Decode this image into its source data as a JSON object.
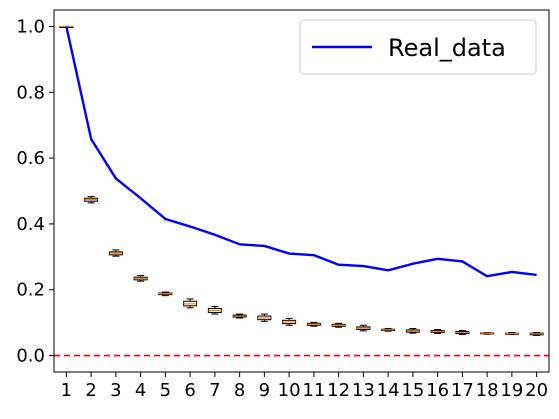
{
  "chart_data": {
    "type": "box-with-line",
    "title": "",
    "xlabel": "",
    "ylabel": "",
    "xlim": [
      0.5,
      20.5
    ],
    "ylim": [
      -0.05,
      1.05
    ],
    "x_ticks": [
      "1",
      "2",
      "3",
      "4",
      "5",
      "6",
      "7",
      "8",
      "9",
      "10",
      "11",
      "12",
      "13",
      "14",
      "15",
      "16",
      "17",
      "18",
      "19",
      "20"
    ],
    "y_ticks": [
      {
        "value": 0.0,
        "label": "0.0"
      },
      {
        "value": 0.2,
        "label": "0.2"
      },
      {
        "value": 0.4,
        "label": "0.4"
      },
      {
        "value": 0.6,
        "label": "0.6"
      },
      {
        "value": 0.8,
        "label": "0.8"
      },
      {
        "value": 1.0,
        "label": "1.0"
      }
    ],
    "grid": false,
    "legend": {
      "placement": "top-right",
      "entries": [
        {
          "label": "Real_data",
          "color": "#0000ff"
        }
      ]
    },
    "line_series": {
      "name": "Real_data",
      "color": "#0000ff",
      "x": [
        1,
        2,
        3,
        4,
        5,
        6,
        7,
        8,
        9,
        10,
        11,
        12,
        13,
        14,
        15,
        16,
        17,
        18,
        19,
        20
      ],
      "y": [
        1.0,
        0.658,
        0.538,
        0.478,
        0.415,
        0.392,
        0.367,
        0.338,
        0.333,
        0.31,
        0.305,
        0.276,
        0.272,
        0.259,
        0.279,
        0.294,
        0.286,
        0.241,
        0.254,
        0.245
      ]
    },
    "box_series": {
      "box_color": "#000000",
      "median_color": "#ff7f0e",
      "boxes": [
        {
          "x": 1,
          "min": 0.998,
          "q1": 0.999,
          "median": 1.0,
          "q3": 1.0,
          "max": 1.0
        },
        {
          "x": 2,
          "min": 0.464,
          "q1": 0.469,
          "median": 0.474,
          "q3": 0.478,
          "max": 0.483
        },
        {
          "x": 3,
          "min": 0.302,
          "q1": 0.306,
          "median": 0.311,
          "q3": 0.315,
          "max": 0.321
        },
        {
          "x": 4,
          "min": 0.226,
          "q1": 0.23,
          "median": 0.234,
          "q3": 0.238,
          "max": 0.243
        },
        {
          "x": 5,
          "min": 0.182,
          "q1": 0.185,
          "median": 0.188,
          "q3": 0.19,
          "max": 0.193
        },
        {
          "x": 6,
          "min": 0.145,
          "q1": 0.151,
          "median": 0.157,
          "q3": 0.165,
          "max": 0.172
        },
        {
          "x": 7,
          "min": 0.126,
          "q1": 0.131,
          "median": 0.137,
          "q3": 0.143,
          "max": 0.149
        },
        {
          "x": 8,
          "min": 0.114,
          "q1": 0.117,
          "median": 0.12,
          "q3": 0.123,
          "max": 0.126
        },
        {
          "x": 9,
          "min": 0.104,
          "q1": 0.109,
          "median": 0.114,
          "q3": 0.12,
          "max": 0.126
        },
        {
          "x": 10,
          "min": 0.092,
          "q1": 0.097,
          "median": 0.102,
          "q3": 0.107,
          "max": 0.113
        },
        {
          "x": 11,
          "min": 0.089,
          "q1": 0.092,
          "median": 0.095,
          "q3": 0.098,
          "max": 0.101
        },
        {
          "x": 12,
          "min": 0.086,
          "q1": 0.089,
          "median": 0.092,
          "q3": 0.095,
          "max": 0.098
        },
        {
          "x": 13,
          "min": 0.075,
          "q1": 0.079,
          "median": 0.083,
          "q3": 0.087,
          "max": 0.092
        },
        {
          "x": 14,
          "min": 0.074,
          "q1": 0.076,
          "median": 0.078,
          "q3": 0.08,
          "max": 0.082
        },
        {
          "x": 15,
          "min": 0.068,
          "q1": 0.071,
          "median": 0.075,
          "q3": 0.078,
          "max": 0.082
        },
        {
          "x": 16,
          "min": 0.067,
          "q1": 0.07,
          "median": 0.073,
          "q3": 0.076,
          "max": 0.079
        },
        {
          "x": 17,
          "min": 0.064,
          "q1": 0.067,
          "median": 0.07,
          "q3": 0.073,
          "max": 0.076
        },
        {
          "x": 18,
          "min": 0.065,
          "q1": 0.066,
          "median": 0.068,
          "q3": 0.069,
          "max": 0.07
        },
        {
          "x": 19,
          "min": 0.064,
          "q1": 0.066,
          "median": 0.067,
          "q3": 0.068,
          "max": 0.07
        },
        {
          "x": 20,
          "min": 0.061,
          "q1": 0.063,
          "median": 0.066,
          "q3": 0.068,
          "max": 0.07
        }
      ]
    },
    "reference_line": {
      "y": 0.0,
      "color": "#ff0000",
      "style": "dashed"
    }
  }
}
